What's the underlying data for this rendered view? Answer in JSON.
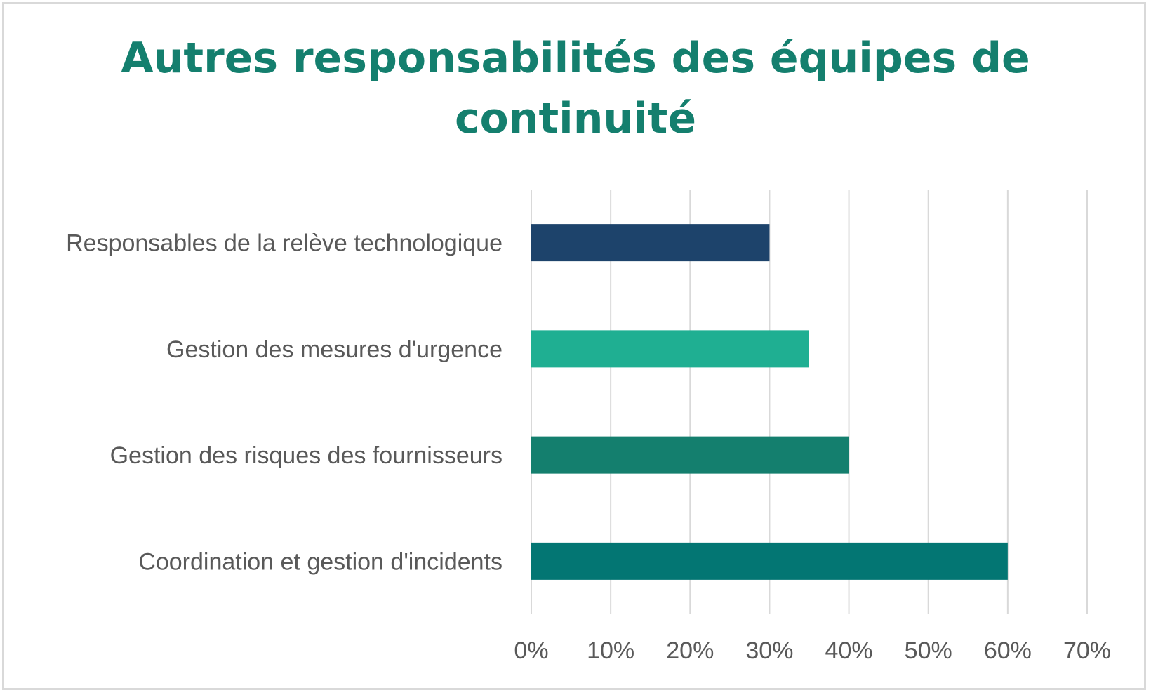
{
  "chart_data": {
    "type": "bar",
    "orientation": "horizontal",
    "title": "Autres responsabilités des équipes de continuité",
    "xlabel": "",
    "ylabel": "",
    "categories": [
      "Responsables de la relève technologique",
      "Gestion des mesures d'urgence",
      "Gestion des risques des fournisseurs",
      "Coordination et gestion d'incidents"
    ],
    "values": [
      30,
      35,
      40,
      60
    ],
    "colors": [
      "#1d436b",
      "#1faf92",
      "#147f6e",
      "#037673"
    ],
    "xlim": [
      0,
      70
    ],
    "xticks": [
      0,
      10,
      20,
      30,
      40,
      50,
      60,
      70
    ],
    "xtick_labels": [
      "0%",
      "10%",
      "20%",
      "30%",
      "40%",
      "50%",
      "60%",
      "70%"
    ],
    "grid": true,
    "legend": "none"
  }
}
